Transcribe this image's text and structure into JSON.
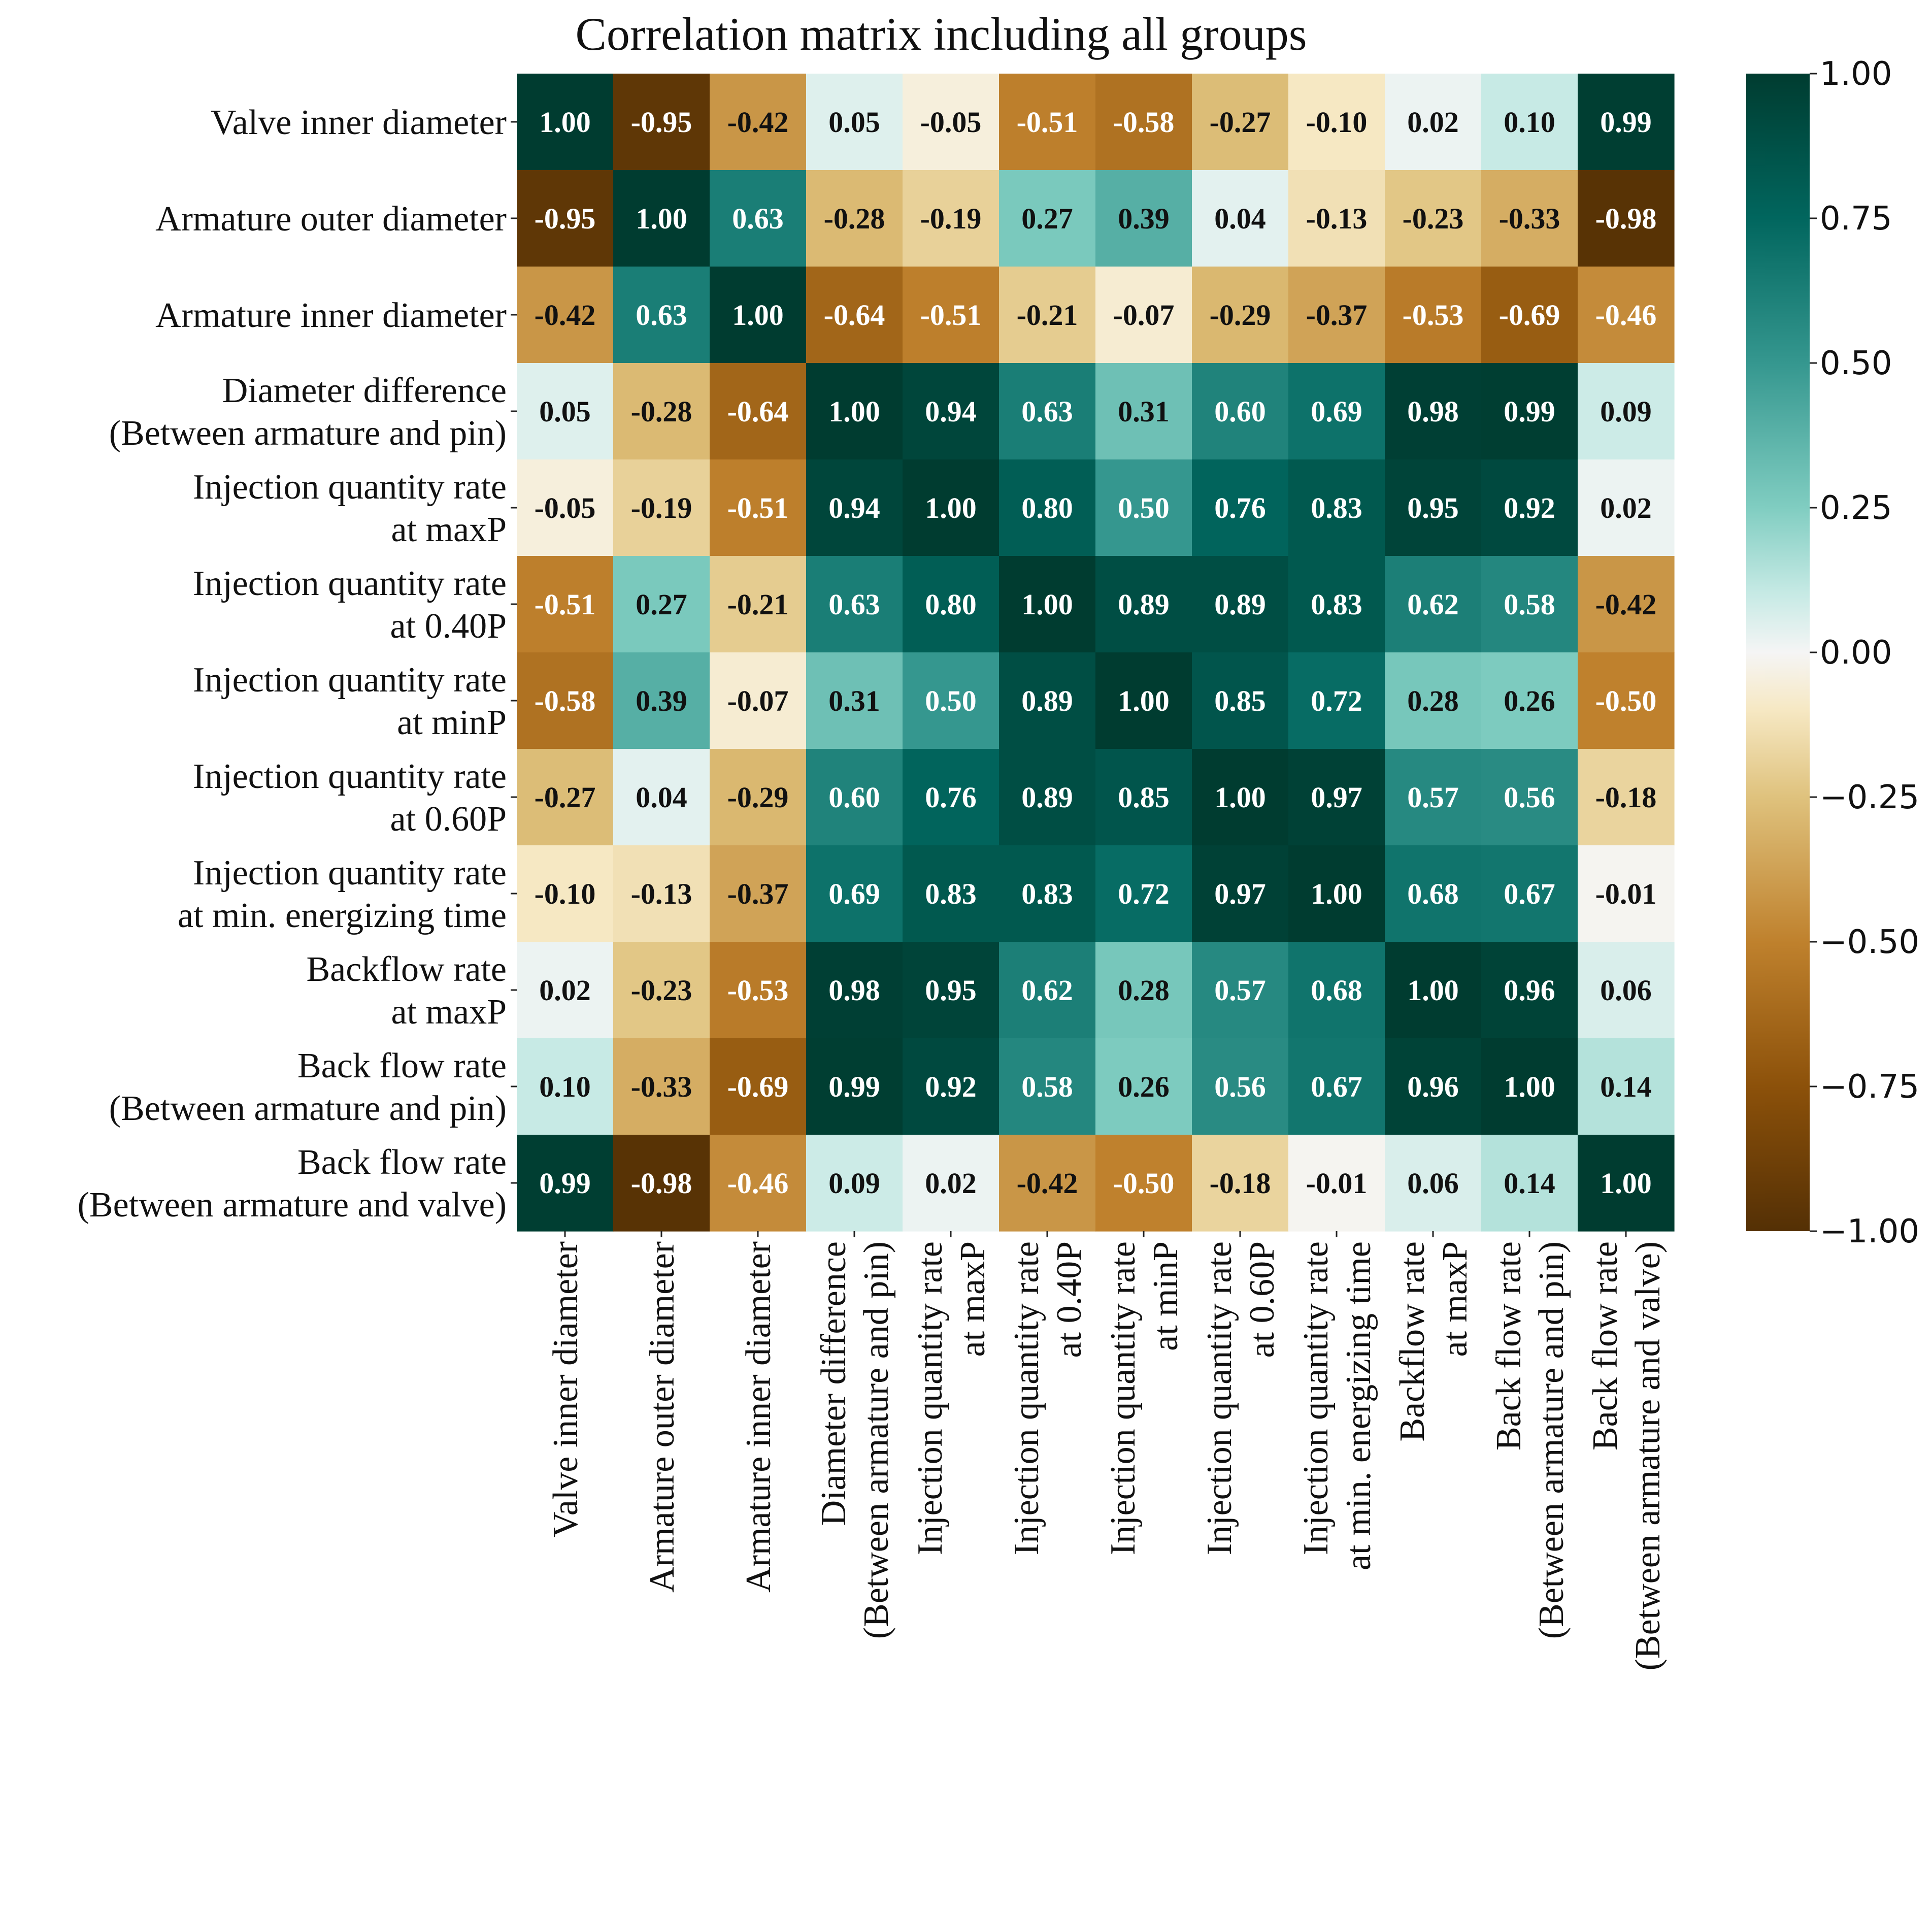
{
  "chart_data": {
    "type": "heatmap",
    "title": "Correlation matrix including all groups",
    "xlabel": "",
    "ylabel": "",
    "labels": [
      [
        "Valve inner diameter"
      ],
      [
        "Armature outer diameter"
      ],
      [
        "Armature inner diameter"
      ],
      [
        "Diameter difference",
        "(Between armature and  pin)"
      ],
      [
        "Injection quantity rate",
        "at maxP"
      ],
      [
        "Injection quantity rate",
        "at 0.40P"
      ],
      [
        "Injection quantity rate",
        "at minP"
      ],
      [
        "Injection quantity rate",
        "at 0.60P"
      ],
      [
        "Injection quantity rate",
        "at min. energizing time"
      ],
      [
        "Backflow rate",
        "at maxP"
      ],
      [
        "Back flow rate",
        "(Between armature and pin)"
      ],
      [
        "Back flow rate",
        "(Between armature and valve)"
      ]
    ],
    "matrix": [
      [
        1.0,
        -0.95,
        -0.42,
        0.05,
        -0.05,
        -0.51,
        -0.58,
        -0.27,
        -0.1,
        0.02,
        0.1,
        0.99
      ],
      [
        -0.95,
        1.0,
        0.63,
        -0.28,
        -0.19,
        0.27,
        0.39,
        0.04,
        -0.13,
        -0.23,
        -0.33,
        -0.98
      ],
      [
        -0.42,
        0.63,
        1.0,
        -0.64,
        -0.51,
        -0.21,
        -0.07,
        -0.29,
        -0.37,
        -0.53,
        -0.69,
        -0.46
      ],
      [
        0.05,
        -0.28,
        -0.64,
        1.0,
        0.94,
        0.63,
        0.31,
        0.6,
        0.69,
        0.98,
        0.99,
        0.09
      ],
      [
        -0.05,
        -0.19,
        -0.51,
        0.94,
        1.0,
        0.8,
        0.5,
        0.76,
        0.83,
        0.95,
        0.92,
        0.02
      ],
      [
        -0.51,
        0.27,
        -0.21,
        0.63,
        0.8,
        1.0,
        0.89,
        0.89,
        0.83,
        0.62,
        0.58,
        -0.42
      ],
      [
        -0.58,
        0.39,
        -0.07,
        0.31,
        0.5,
        0.89,
        1.0,
        0.85,
        0.72,
        0.28,
        0.26,
        -0.5
      ],
      [
        -0.27,
        0.04,
        -0.29,
        0.6,
        0.76,
        0.89,
        0.85,
        1.0,
        0.97,
        0.57,
        0.56,
        -0.18
      ],
      [
        -0.1,
        -0.13,
        -0.37,
        0.69,
        0.83,
        0.83,
        0.72,
        0.97,
        1.0,
        0.68,
        0.67,
        -0.01
      ],
      [
        0.02,
        -0.23,
        -0.53,
        0.98,
        0.95,
        0.62,
        0.28,
        0.57,
        0.68,
        1.0,
        0.96,
        0.06
      ],
      [
        0.1,
        -0.33,
        -0.69,
        0.99,
        0.92,
        0.58,
        0.26,
        0.56,
        0.67,
        0.96,
        1.0,
        0.14
      ],
      [
        0.99,
        -0.98,
        -0.46,
        0.09,
        0.02,
        -0.42,
        -0.5,
        -0.18,
        -0.01,
        0.06,
        0.14,
        1.0
      ]
    ],
    "value_format": "2 decimals",
    "colormap": {
      "name": "BrBG",
      "vmin": -1.0,
      "vmax": 1.0,
      "stops": [
        [
          -1.0,
          "#543005"
        ],
        [
          -0.75,
          "#8c510a"
        ],
        [
          -0.5,
          "#bf812d"
        ],
        [
          -0.25,
          "#dfc27d"
        ],
        [
          -0.1,
          "#f6e8c3"
        ],
        [
          0.0,
          "#f5f5f5"
        ],
        [
          0.1,
          "#c7eae5"
        ],
        [
          0.25,
          "#80cdc1"
        ],
        [
          0.5,
          "#35978f"
        ],
        [
          0.75,
          "#01665e"
        ],
        [
          1.0,
          "#003c30"
        ]
      ]
    },
    "colorbar": {
      "ticks": [
        "1.00",
        "0.75",
        "0.50",
        "0.25",
        "0.00",
        "−0.25",
        "−0.50",
        "−0.75",
        "−1.00"
      ],
      "tick_values": [
        1.0,
        0.75,
        0.5,
        0.25,
        0.0,
        -0.25,
        -0.5,
        -0.75,
        -1.0
      ],
      "placement": "right"
    }
  }
}
